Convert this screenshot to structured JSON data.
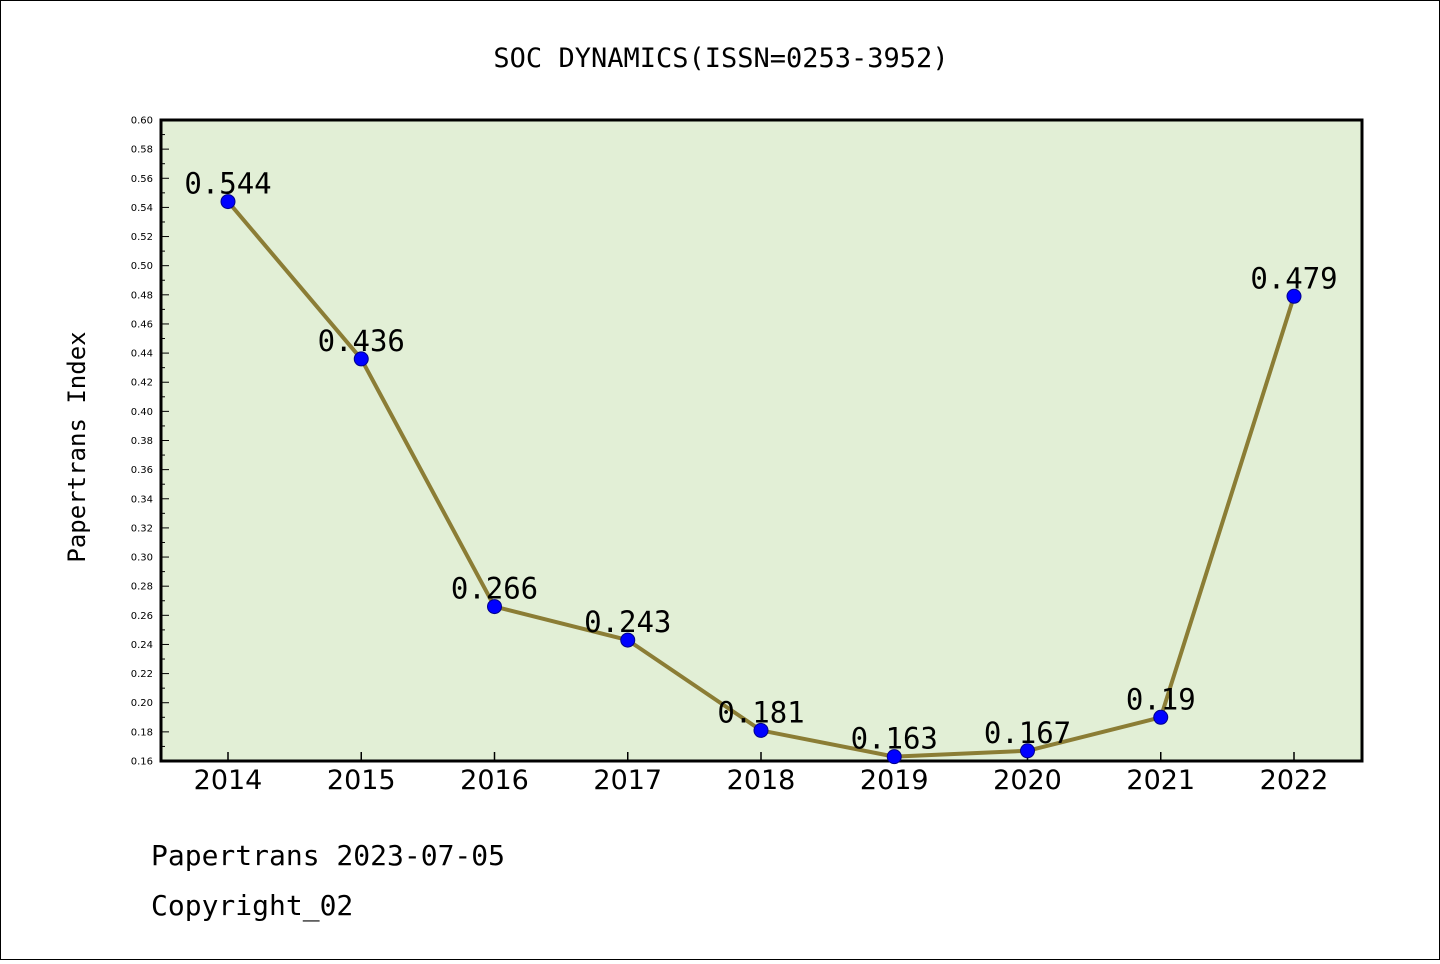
{
  "chart_data": {
    "type": "line",
    "title": "SOC DYNAMICS(ISSN=0253-3952)",
    "xlabel": "",
    "ylabel": "Papertrans Index",
    "categories": [
      "2014",
      "2015",
      "2016",
      "2017",
      "2018",
      "2019",
      "2020",
      "2021",
      "2022"
    ],
    "series": [
      {
        "values": [
          0.544,
          0.436,
          0.266,
          0.243,
          0.181,
          0.163,
          0.167,
          0.19,
          0.479
        ],
        "labels": [
          "0.544",
          "0.436",
          "0.266",
          "0.243",
          "0.181",
          "0.163",
          "0.167",
          "0.19",
          "0.479"
        ],
        "line_color": "#8b7d35",
        "marker_color": "#0000ff"
      }
    ],
    "ylim": [
      0.16,
      0.6
    ],
    "yticks": [
      "0.16",
      "0.18",
      "0.20",
      "0.22",
      "0.24",
      "0.26",
      "0.28",
      "0.30",
      "0.32",
      "0.34",
      "0.36",
      "0.38",
      "0.40",
      "0.42",
      "0.44",
      "0.46",
      "0.48",
      "0.50",
      "0.52",
      "0.54",
      "0.56",
      "0.58",
      "0.60"
    ],
    "plot_background": "#e2efd6",
    "grid": false,
    "legend": "none"
  },
  "footer": {
    "line1": "Papertrans 2023-07-05",
    "line2": "Copyright_02"
  }
}
